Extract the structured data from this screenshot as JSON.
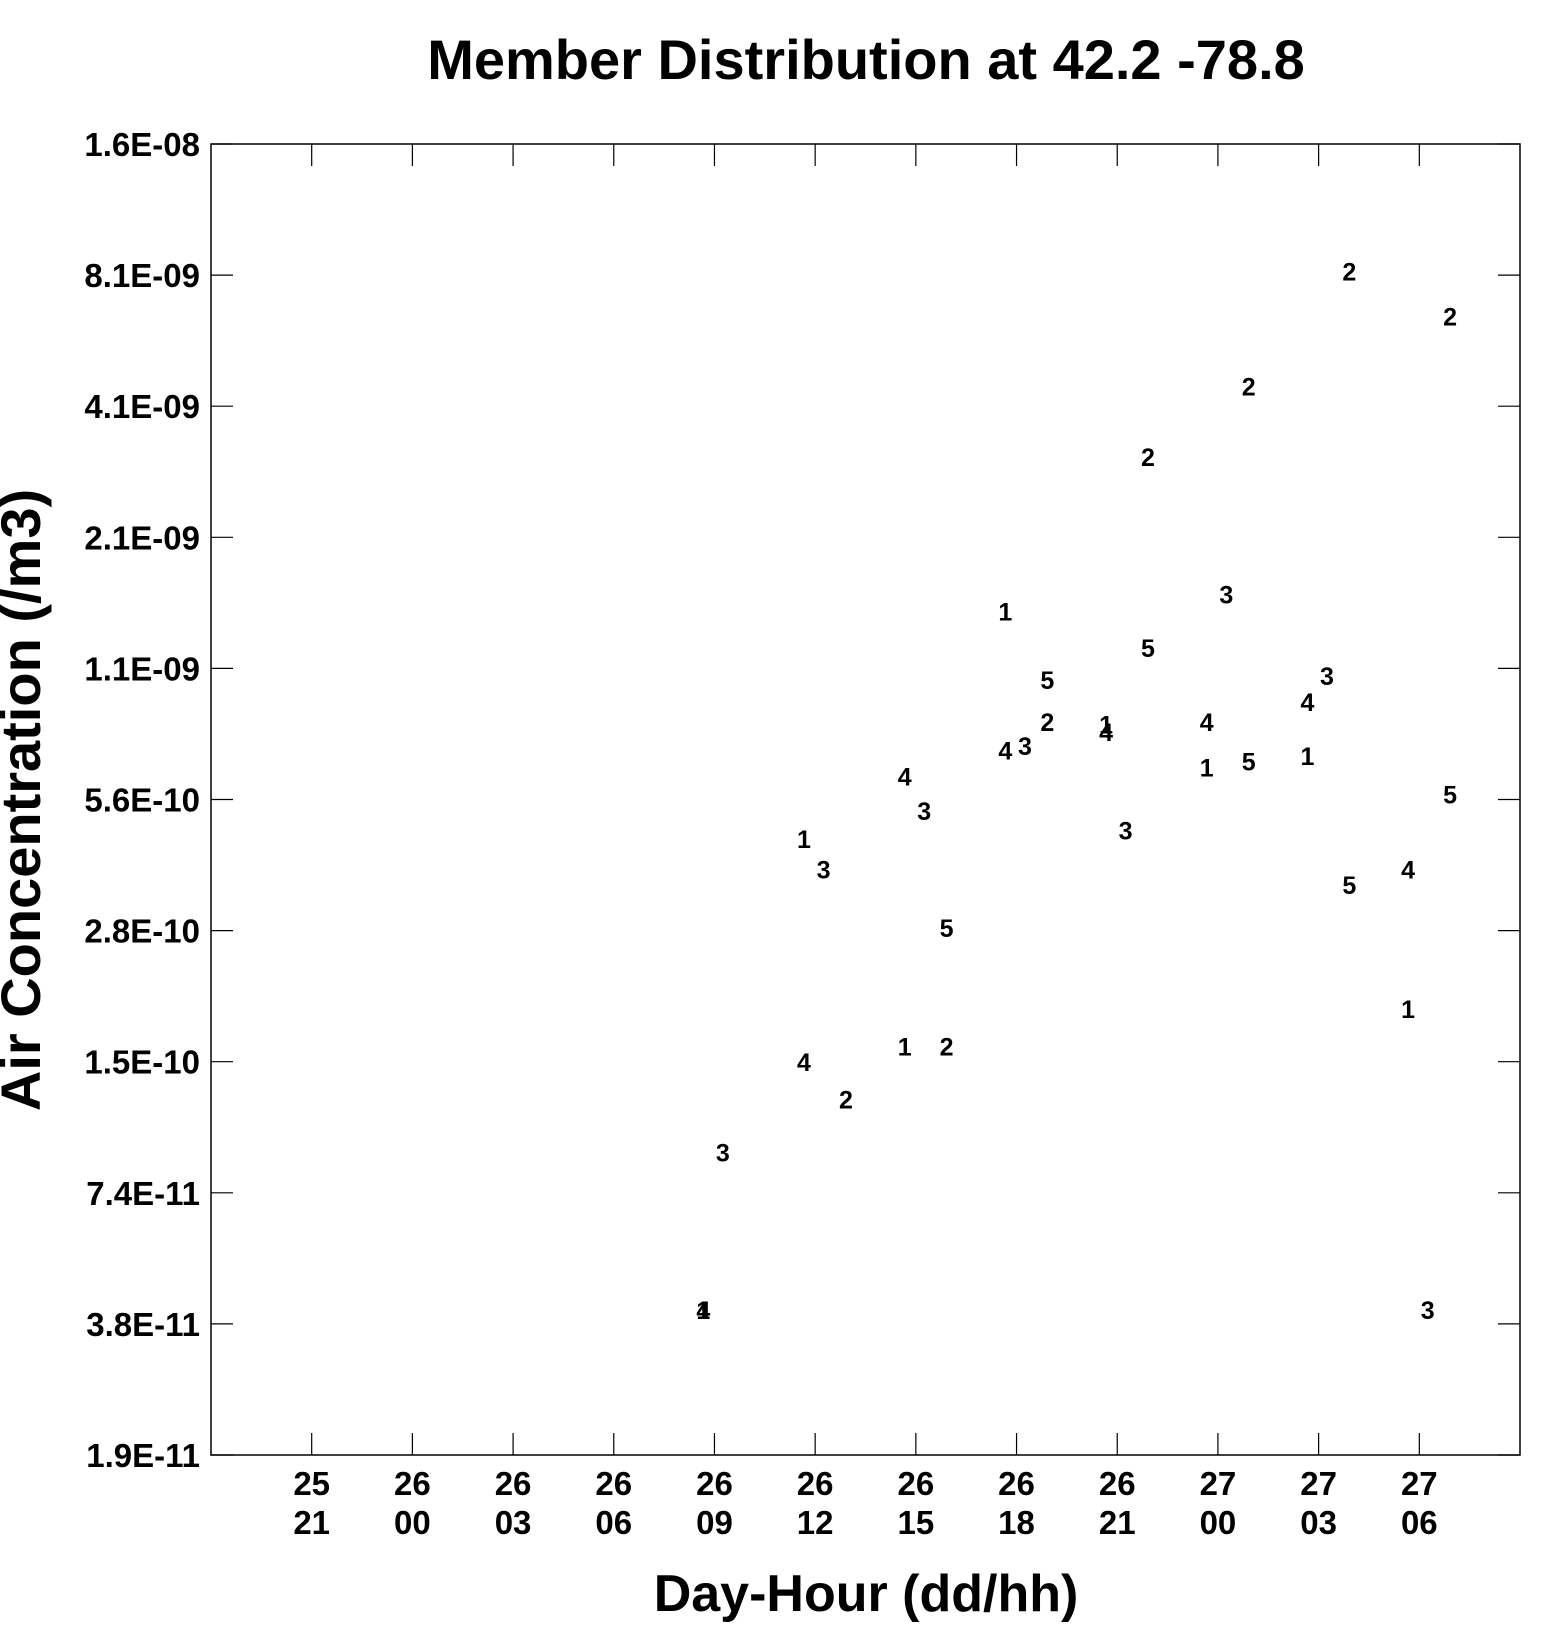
{
  "chart_data": {
    "type": "scatter",
    "title": "Member Distribution at  42.2  -78.8",
    "xlabel": "Day-Hour (dd/hh)",
    "ylabel": "Air Concentration (/m3)",
    "y_scale": "log",
    "ylim": [
      1.9e-11,
      1.6e-08
    ],
    "y_ticks": [
      "1.9E-11",
      "3.8E-11",
      "7.4E-11",
      "1.5E-10",
      "2.8E-10",
      "5.6E-10",
      "1.1E-09",
      "2.1E-09",
      "4.1E-09",
      "8.1E-09",
      "1.6E-08"
    ],
    "x_ticks": [
      {
        "day": "25",
        "hour": "21"
      },
      {
        "day": "26",
        "hour": "00"
      },
      {
        "day": "26",
        "hour": "03"
      },
      {
        "day": "26",
        "hour": "06"
      },
      {
        "day": "26",
        "hour": "09"
      },
      {
        "day": "26",
        "hour": "12"
      },
      {
        "day": "26",
        "hour": "15"
      },
      {
        "day": "26",
        "hour": "18"
      },
      {
        "day": "26",
        "hour": "21"
      },
      {
        "day": "27",
        "hour": "00"
      },
      {
        "day": "27",
        "hour": "03"
      },
      {
        "day": "27",
        "hour": "06"
      }
    ],
    "x_unit": "hours",
    "xlim": [
      "25 18",
      "27 09"
    ],
    "grid": false,
    "legend": "none",
    "points": [
      {
        "label": "4",
        "x": "26 08:40",
        "y": 4e-11
      },
      {
        "label": "1",
        "x": "26 08:40",
        "y": 4e-11
      },
      {
        "label": "3",
        "x": "26 09:15",
        "y": 9e-11
      },
      {
        "label": "4",
        "x": "26 11:40",
        "y": 1.43e-10
      },
      {
        "label": "1",
        "x": "26 11:40",
        "y": 4.5e-10
      },
      {
        "label": "3",
        "x": "26 12:15",
        "y": 3.85e-10
      },
      {
        "label": "2",
        "x": "26 12:55",
        "y": 1.18e-10
      },
      {
        "label": "1",
        "x": "26 14:40",
        "y": 1.55e-10
      },
      {
        "label": "4",
        "x": "26 14:40",
        "y": 6.2e-10
      },
      {
        "label": "3",
        "x": "26 15:15",
        "y": 5.2e-10
      },
      {
        "label": "2",
        "x": "26 15:55",
        "y": 1.55e-10
      },
      {
        "label": "5",
        "x": "26 15:55",
        "y": 2.85e-10
      },
      {
        "label": "1",
        "x": "26 17:40",
        "y": 1.45e-09
      },
      {
        "label": "4",
        "x": "26 17:40",
        "y": 7.1e-10
      },
      {
        "label": "3",
        "x": "26 18:15",
        "y": 7.25e-10
      },
      {
        "label": "5",
        "x": "26 18:55",
        "y": 1.02e-09
      },
      {
        "label": "2",
        "x": "26 18:55",
        "y": 8.2e-10
      },
      {
        "label": "1",
        "x": "26 20:40",
        "y": 8.1e-10
      },
      {
        "label": "4",
        "x": "26 20:40",
        "y": 7.8e-10
      },
      {
        "label": "3",
        "x": "26 21:15",
        "y": 4.7e-10
      },
      {
        "label": "2",
        "x": "26 21:55",
        "y": 3.2e-09
      },
      {
        "label": "5",
        "x": "26 21:55",
        "y": 1.2e-09
      },
      {
        "label": "1",
        "x": "26 23:40",
        "y": 6.5e-10
      },
      {
        "label": "4",
        "x": "26 23:40",
        "y": 8.2e-10
      },
      {
        "label": "3",
        "x": "27 00:15",
        "y": 1.58e-09
      },
      {
        "label": "2",
        "x": "27 00:55",
        "y": 4.6e-09
      },
      {
        "label": "5",
        "x": "27 00:55",
        "y": 6.7e-10
      },
      {
        "label": "1",
        "x": "27 02:40",
        "y": 6.9e-10
      },
      {
        "label": "4",
        "x": "27 02:40",
        "y": 9.1e-10
      },
      {
        "label": "3",
        "x": "27 03:15",
        "y": 1.04e-09
      },
      {
        "label": "2",
        "x": "27 03:55",
        "y": 8.3e-09
      },
      {
        "label": "5",
        "x": "27 03:55",
        "y": 3.55e-10
      },
      {
        "label": "1",
        "x": "27 05:40",
        "y": 1.88e-10
      },
      {
        "label": "4",
        "x": "27 05:40",
        "y": 3.85e-10
      },
      {
        "label": "3",
        "x": "27 06:15",
        "y": 4e-11
      },
      {
        "label": "2",
        "x": "27 06:55",
        "y": 6.6e-09
      },
      {
        "label": "5",
        "x": "27 06:55",
        "y": 5.65e-10
      }
    ]
  }
}
